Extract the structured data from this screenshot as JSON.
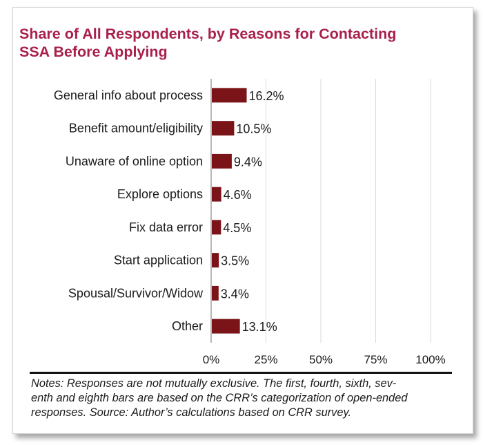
{
  "title_lines": [
    "Share of All Respondents, by Reasons for Contacting",
    "SSA Before Applying"
  ],
  "chart_data": {
    "type": "bar",
    "orientation": "horizontal",
    "categories": [
      "General info about process",
      "Benefit amount/eligibility",
      "Unaware of online option",
      "Explore options",
      "Fix data error",
      "Start application",
      "Spousal/Survivor/Widow",
      "Other"
    ],
    "values": [
      16.2,
      10.5,
      9.4,
      4.6,
      4.5,
      3.5,
      3.4,
      13.1
    ],
    "value_labels": [
      "16.2%",
      "10.5%",
      "9.4%",
      "4.6%",
      "4.5%",
      "3.5%",
      "3.4%",
      "13.1%"
    ],
    "xlim": [
      0,
      100
    ],
    "x_ticks": [
      0,
      25,
      50,
      75,
      100
    ],
    "x_tick_labels": [
      "0%",
      "25%",
      "50%",
      "75%",
      "100%"
    ],
    "grid": true,
    "bar_color": "#7b1418"
  },
  "notes": "Notes: Responses are not mutually exclusive. The first, fourth, sixth, sev-enth and eighth bars are based on the CRR’s categorization of open-ended responses. Source: Author’s calculations based on CRR survey.",
  "notes_lines": [
    "Notes: Responses are not mutually exclusive. The first, fourth, sixth, sev-",
    "enth and eighth bars are based on the CRR’s categorization of open-ended",
    "responses. Source: Author’s calculations based on CRR survey."
  ],
  "colors": {
    "title": "#a8204b",
    "bar": "#7b1418",
    "grid": "#d9d9d9",
    "axis": "#888888"
  }
}
